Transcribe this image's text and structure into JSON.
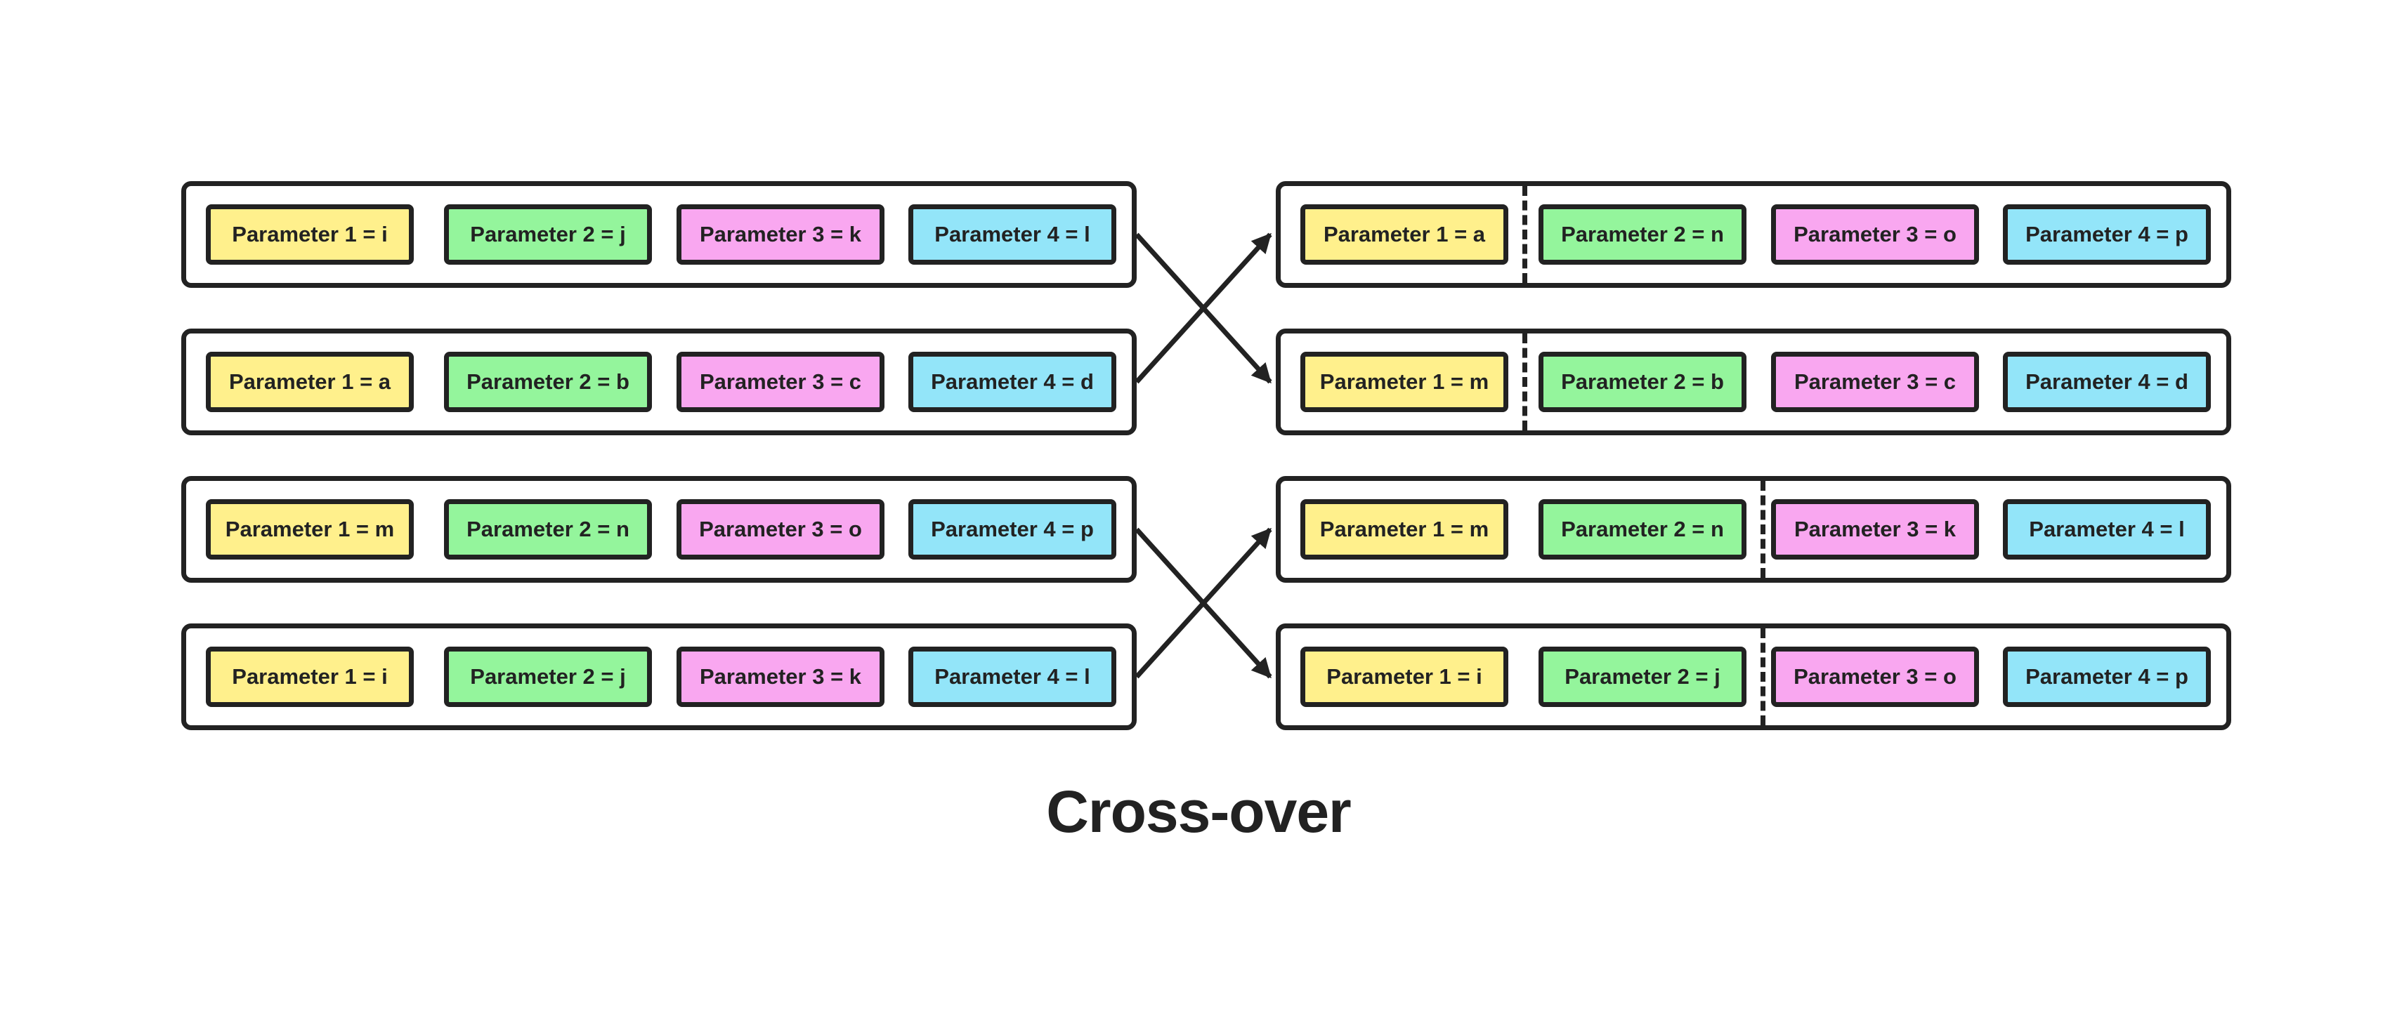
{
  "title": "Cross-over",
  "colors": {
    "param1": "#fff08c",
    "param2": "#94f59c",
    "param3": "#f9a7f0",
    "param4": "#93e5f9",
    "stroke": "#222222"
  },
  "parents": [
    {
      "params": [
        "Parameter 1 = i",
        "Parameter 2 = j",
        "Parameter 3 = k",
        "Parameter 4 = l"
      ]
    },
    {
      "params": [
        "Parameter 1 = a",
        "Parameter 2 = b",
        "Parameter 3 = c",
        "Parameter 4 = d"
      ]
    },
    {
      "params": [
        "Parameter 1 = m",
        "Parameter 2 = n",
        "Parameter 3 = o",
        "Parameter 4 = p"
      ]
    },
    {
      "params": [
        "Parameter 1 = i",
        "Parameter 2 = j",
        "Parameter 3 = k",
        "Parameter 4 = l"
      ]
    }
  ],
  "offspring": [
    {
      "params": [
        "Parameter 1 = a",
        "Parameter 2 = n",
        "Parameter 3 = o",
        "Parameter 4 = p"
      ],
      "split_after": 1
    },
    {
      "params": [
        "Parameter 1 = m",
        "Parameter 2 = b",
        "Parameter 3 = c",
        "Parameter 4 = d"
      ],
      "split_after": 1
    },
    {
      "params": [
        "Parameter 1 = m",
        "Parameter 2 = n",
        "Parameter 3 = k",
        "Parameter 4 = l"
      ],
      "split_after": 2
    },
    {
      "params": [
        "Parameter 1 = i",
        "Parameter 2 = j",
        "Parameter 3 = o",
        "Parameter 4 = p"
      ],
      "split_after": 2
    }
  ],
  "arrows": [
    {
      "from_parent": 0,
      "to_offspring": 1
    },
    {
      "from_parent": 1,
      "to_offspring": 0
    },
    {
      "from_parent": 2,
      "to_offspring": 3
    },
    {
      "from_parent": 3,
      "to_offspring": 2
    }
  ]
}
